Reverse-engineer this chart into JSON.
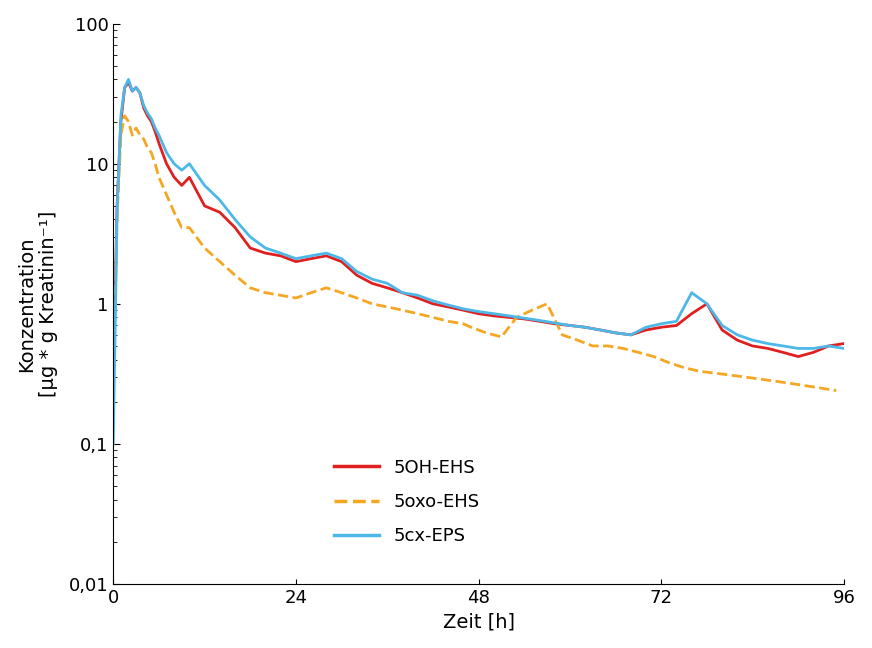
{
  "xlabel": "Zeit [h]",
  "ylabel": "Konzentration\n[µg * g Kreatinin⁻¹]",
  "ylim": [
    0.01,
    100
  ],
  "xlim": [
    0,
    96
  ],
  "xticks": [
    0,
    24,
    48,
    72,
    96
  ],
  "ytick_labels": {
    "0.01": "0,01",
    "0.1": "0,1",
    "1": "1",
    "10": "10",
    "100": "100"
  },
  "background_color": "#ffffff",
  "line_width": 2.0,
  "series": {
    "5OH-EHS": {
      "color": "#e02020",
      "linestyle": "-",
      "x": [
        0,
        0.5,
        1,
        1.5,
        2,
        2.5,
        3,
        3.5,
        4,
        4.5,
        5,
        5.5,
        6,
        7,
        8,
        9,
        10,
        12,
        14,
        16,
        18,
        20,
        22,
        24,
        26,
        28,
        30,
        32,
        34,
        36,
        38,
        40,
        42,
        44,
        46,
        48,
        50,
        52,
        54,
        56,
        58,
        60,
        62,
        64,
        66,
        68,
        70,
        72,
        74,
        76,
        78,
        80,
        82,
        84,
        86,
        88,
        90,
        92,
        94,
        96
      ],
      "y": [
        0.27,
        5,
        20,
        35,
        38,
        33,
        35,
        32,
        25,
        22,
        20,
        17,
        14,
        10,
        8,
        7,
        8,
        5,
        4.5,
        3.5,
        2.5,
        2.3,
        2.2,
        2.0,
        2.1,
        2.2,
        2.0,
        1.6,
        1.4,
        1.3,
        1.2,
        1.1,
        1.0,
        0.95,
        0.9,
        0.85,
        0.82,
        0.8,
        0.78,
        0.75,
        0.72,
        0.7,
        0.68,
        0.65,
        0.62,
        0.6,
        0.65,
        0.68,
        0.7,
        0.85,
        1.0,
        0.65,
        0.55,
        0.5,
        0.48,
        0.45,
        0.42,
        0.45,
        0.5,
        0.52
      ]
    },
    "5oxo-EHS": {
      "color": "#f5a623",
      "linestyle": "--",
      "x": [
        0,
        0.5,
        1,
        1.5,
        2,
        2.5,
        3,
        3.5,
        4,
        4.5,
        5,
        5.5,
        6,
        7,
        8,
        9,
        10,
        12,
        14,
        16,
        18,
        20,
        22,
        24,
        26,
        28,
        30,
        32,
        34,
        36,
        38,
        40,
        42,
        44,
        46,
        47,
        49,
        51,
        53,
        55,
        57,
        59,
        61,
        63,
        65,
        67,
        69,
        71,
        73,
        75,
        77,
        79,
        81,
        83,
        85,
        87,
        89,
        91,
        93,
        95
      ],
      "y": [
        0.27,
        4,
        16,
        22,
        20,
        16,
        18,
        16,
        15,
        13,
        12,
        10,
        8,
        6,
        4.5,
        3.5,
        3.5,
        2.5,
        2.0,
        1.6,
        1.3,
        1.2,
        1.15,
        1.1,
        1.2,
        1.3,
        1.2,
        1.1,
        1.0,
        0.95,
        0.9,
        0.85,
        0.8,
        0.75,
        0.72,
        0.68,
        0.62,
        0.58,
        0.8,
        0.9,
        1.0,
        0.6,
        0.55,
        0.5,
        0.5,
        0.48,
        0.45,
        0.42,
        0.38,
        0.35,
        0.33,
        0.32,
        0.31,
        0.3,
        0.29,
        0.28,
        0.27,
        0.26,
        0.25,
        0.24
      ]
    },
    "5cx-EPS": {
      "color": "#4db8e8",
      "linestyle": "-",
      "x": [
        0,
        0.5,
        1,
        1.5,
        2,
        2.5,
        3,
        3.5,
        4,
        4.5,
        5,
        5.5,
        6,
        7,
        8,
        9,
        10,
        12,
        14,
        16,
        18,
        20,
        22,
        24,
        26,
        28,
        30,
        32,
        34,
        36,
        38,
        40,
        42,
        44,
        46,
        48,
        50,
        52,
        54,
        56,
        58,
        60,
        62,
        64,
        66,
        68,
        70,
        72,
        74,
        76,
        78,
        80,
        82,
        84,
        86,
        88,
        90,
        92,
        94,
        96
      ],
      "y": [
        0.1,
        4.5,
        22,
        35,
        40,
        33,
        35,
        32,
        26,
        23,
        21,
        18,
        16,
        12,
        10,
        9,
        10,
        7,
        5.5,
        4.0,
        3.0,
        2.5,
        2.3,
        2.1,
        2.2,
        2.3,
        2.1,
        1.7,
        1.5,
        1.4,
        1.2,
        1.15,
        1.05,
        0.98,
        0.92,
        0.88,
        0.85,
        0.82,
        0.79,
        0.76,
        0.73,
        0.7,
        0.68,
        0.65,
        0.62,
        0.6,
        0.68,
        0.72,
        0.75,
        1.2,
        1.0,
        0.7,
        0.6,
        0.55,
        0.52,
        0.5,
        0.48,
        0.48,
        0.5,
        0.48
      ]
    }
  },
  "legend_order": [
    "5OH-EHS",
    "5oxo-EHS",
    "5cx-EPS"
  ],
  "fontsize_labels": 14,
  "fontsize_ticks": 13,
  "fontsize_legend": 13
}
